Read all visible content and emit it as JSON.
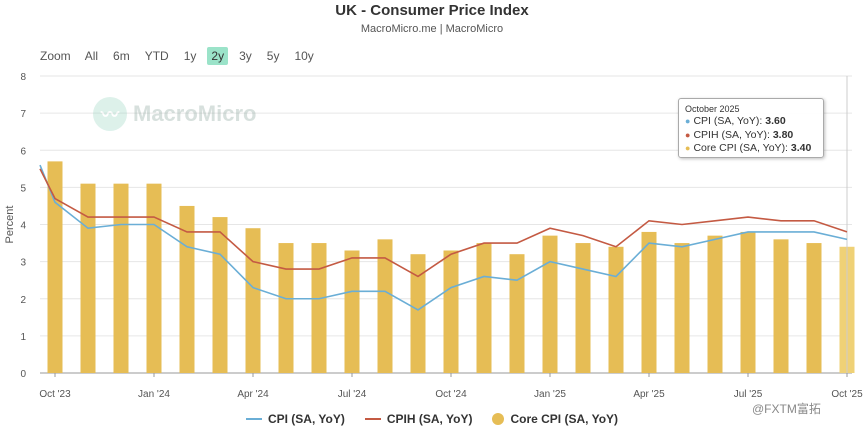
{
  "header": {
    "title": "UK - Consumer Price Index",
    "subtitle": "MacroMicro.me | MacroMicro"
  },
  "zoom": {
    "label": "Zoom",
    "options": [
      "All",
      "6m",
      "YTD",
      "1y",
      "2y",
      "3y",
      "5y",
      "10y"
    ],
    "active": "2y"
  },
  "watermark": {
    "text": "MacroMicro"
  },
  "corner_mark": {
    "text": "@FXTM富拓"
  },
  "tooltip": {
    "date": "October 2025",
    "rows": [
      {
        "label": "CPI (SA, YoY): ",
        "value": "3.60",
        "color": "#6aaed6"
      },
      {
        "label": "CPIH (SA, YoY): ",
        "value": "3.80",
        "color": "#c45a43"
      },
      {
        "label": "Core CPI (SA, YoY): ",
        "value": "3.40",
        "color": "#e6bd55"
      }
    ]
  },
  "chart_data": {
    "type": "bar",
    "title": "UK - Consumer Price Index",
    "ylabel": "Percent",
    "ylim": [
      0,
      8
    ],
    "yticks": [
      0,
      1,
      2,
      3,
      4,
      5,
      6,
      7,
      8
    ],
    "x_tick_labels": [
      "Oct '23",
      "Jan '24",
      "Apr '24",
      "Jul '24",
      "Oct '24",
      "Jan '25",
      "Apr '25",
      "Jul '25",
      "Oct '25"
    ],
    "categories": [
      "2023-10",
      "2023-11",
      "2023-12",
      "2024-01",
      "2024-02",
      "2024-03",
      "2024-04",
      "2024-05",
      "2024-06",
      "2024-07",
      "2024-08",
      "2024-09",
      "2024-10",
      "2024-11",
      "2024-12",
      "2025-01",
      "2025-02",
      "2025-03",
      "2025-04",
      "2025-05",
      "2025-06",
      "2025-07",
      "2025-08",
      "2025-09",
      "2025-10"
    ],
    "series": [
      {
        "name": "CPI (SA, YoY)",
        "kind": "line",
        "color": "#6aaed6",
        "start": 5.6,
        "values": [
          4.6,
          3.9,
          4.0,
          4.0,
          3.4,
          3.2,
          2.3,
          2.0,
          2.0,
          2.2,
          2.2,
          1.7,
          2.3,
          2.6,
          2.5,
          3.0,
          2.8,
          2.6,
          3.5,
          3.4,
          3.6,
          3.8,
          3.8,
          3.8,
          3.6
        ]
      },
      {
        "name": "CPIH (SA, YoY)",
        "kind": "line",
        "color": "#c45a43",
        "start": 5.5,
        "values": [
          4.7,
          4.2,
          4.2,
          4.2,
          3.8,
          3.8,
          3.0,
          2.8,
          2.8,
          3.1,
          3.1,
          2.6,
          3.2,
          3.5,
          3.5,
          3.9,
          3.7,
          3.4,
          4.1,
          4.0,
          4.1,
          4.2,
          4.1,
          4.1,
          3.8
        ]
      },
      {
        "name": "Core CPI (SA, YoY)",
        "kind": "bar",
        "color": "#e6bd55",
        "values": [
          5.7,
          5.1,
          5.1,
          5.1,
          4.5,
          4.2,
          3.9,
          3.5,
          3.5,
          3.3,
          3.6,
          3.2,
          3.3,
          3.5,
          3.2,
          3.7,
          3.5,
          3.4,
          3.8,
          3.5,
          3.7,
          3.8,
          3.6,
          3.5,
          3.4
        ]
      }
    ],
    "legend": "bottom",
    "grid": true
  }
}
